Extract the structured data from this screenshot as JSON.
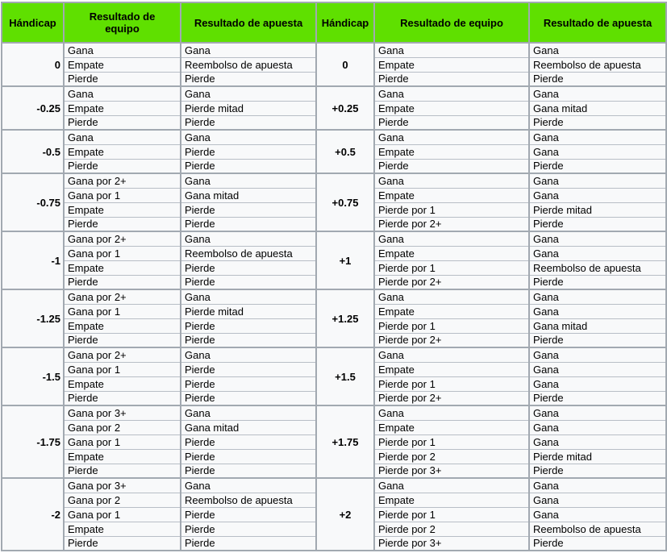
{
  "columns": [
    "Hándicap",
    "Resultado de equipo",
    "Resultado de apuesta",
    "Hándicap",
    "Resultado de equipo",
    "Resultado de apuesta"
  ],
  "colors": {
    "header_bg": "#5fe000",
    "border_major": "#a2a9b1",
    "border_minor": "#b8bec6",
    "cell_bg": "#f8f9fa",
    "text": "#000000"
  },
  "groups": [
    {
      "left": {
        "handicap": "0",
        "rows": [
          [
            "Gana",
            "Gana"
          ],
          [
            "Empate",
            "Reembolso de apuesta"
          ],
          [
            "Pierde",
            "Pierde"
          ]
        ]
      },
      "right": {
        "handicap": "0",
        "rows": [
          [
            "Gana",
            "Gana"
          ],
          [
            "Empate",
            "Reembolso de apuesta"
          ],
          [
            "Pierde",
            "Pierde"
          ]
        ]
      }
    },
    {
      "left": {
        "handicap": "-0.25",
        "rows": [
          [
            "Gana",
            "Gana"
          ],
          [
            "Empate",
            "Pierde mitad"
          ],
          [
            "Pierde",
            "Pierde"
          ]
        ]
      },
      "right": {
        "handicap": "+0.25",
        "rows": [
          [
            "Gana",
            "Gana"
          ],
          [
            "Empate",
            "Gana mitad"
          ],
          [
            "Pierde",
            "Pierde"
          ]
        ]
      }
    },
    {
      "left": {
        "handicap": "-0.5",
        "rows": [
          [
            "Gana",
            "Gana"
          ],
          [
            "Empate",
            "Pierde"
          ],
          [
            "Pierde",
            "Pierde"
          ]
        ]
      },
      "right": {
        "handicap": "+0.5",
        "rows": [
          [
            "Gana",
            "Gana"
          ],
          [
            "Empate",
            "Gana"
          ],
          [
            "Pierde",
            "Pierde"
          ]
        ]
      }
    },
    {
      "left": {
        "handicap": "-0.75",
        "rows": [
          [
            "Gana por 2+",
            "Gana"
          ],
          [
            "Gana por 1",
            "Gana mitad"
          ],
          [
            "Empate",
            "Pierde"
          ],
          [
            "Pierde",
            "Pierde"
          ]
        ]
      },
      "right": {
        "handicap": "+0.75",
        "rows": [
          [
            "Gana",
            "Gana"
          ],
          [
            "Empate",
            "Gana"
          ],
          [
            "Pierde por 1",
            "Pierde mitad"
          ],
          [
            "Pierde por 2+",
            "Pierde"
          ]
        ]
      }
    },
    {
      "left": {
        "handicap": "-1",
        "rows": [
          [
            "Gana por 2+",
            "Gana"
          ],
          [
            "Gana por 1",
            "Reembolso de apuesta"
          ],
          [
            "Empate",
            "Pierde"
          ],
          [
            "Pierde",
            "Pierde"
          ]
        ]
      },
      "right": {
        "handicap": "+1",
        "rows": [
          [
            "Gana",
            "Gana"
          ],
          [
            "Empate",
            "Gana"
          ],
          [
            "Pierde por 1",
            "Reembolso de apuesta"
          ],
          [
            "Pierde por 2+",
            "Pierde"
          ]
        ]
      }
    },
    {
      "left": {
        "handicap": "-1.25",
        "rows": [
          [
            "Gana por 2+",
            "Gana"
          ],
          [
            "Gana por 1",
            "Pierde mitad"
          ],
          [
            "Empate",
            "Pierde"
          ],
          [
            "Pierde",
            "Pierde"
          ]
        ]
      },
      "right": {
        "handicap": "+1.25",
        "rows": [
          [
            "Gana",
            "Gana"
          ],
          [
            "Empate",
            "Gana"
          ],
          [
            "Pierde por 1",
            "Gana mitad"
          ],
          [
            "Pierde por 2+",
            "Pierde"
          ]
        ]
      }
    },
    {
      "left": {
        "handicap": "-1.5",
        "rows": [
          [
            "Gana por 2+",
            "Gana"
          ],
          [
            "Gana por 1",
            "Pierde"
          ],
          [
            "Empate",
            "Pierde"
          ],
          [
            "Pierde",
            "Pierde"
          ]
        ]
      },
      "right": {
        "handicap": "+1.5",
        "rows": [
          [
            "Gana",
            "Gana"
          ],
          [
            "Empate",
            "Gana"
          ],
          [
            "Pierde por 1",
            "Gana"
          ],
          [
            "Pierde por 2+",
            "Pierde"
          ]
        ]
      }
    },
    {
      "left": {
        "handicap": "-1.75",
        "rows": [
          [
            "Gana por 3+",
            "Gana"
          ],
          [
            "Gana por 2",
            "Gana mitad"
          ],
          [
            "Gana por 1",
            "Pierde"
          ],
          [
            "Empate",
            "Pierde"
          ],
          [
            "Pierde",
            "Pierde"
          ]
        ]
      },
      "right": {
        "handicap": "+1.75",
        "rows": [
          [
            "Gana",
            "Gana"
          ],
          [
            "Empate",
            "Gana"
          ],
          [
            "Pierde por 1",
            "Gana"
          ],
          [
            "Pierde por 2",
            "Pierde mitad"
          ],
          [
            "Pierde por 3+",
            "Pierde"
          ]
        ]
      }
    },
    {
      "left": {
        "handicap": "-2",
        "rows": [
          [
            "Gana por 3+",
            "Gana"
          ],
          [
            "Gana por 2",
            "Reembolso de apuesta"
          ],
          [
            "Gana por 1",
            "Pierde"
          ],
          [
            "Empate",
            "Pierde"
          ],
          [
            "Pierde",
            "Pierde"
          ]
        ]
      },
      "right": {
        "handicap": "+2",
        "rows": [
          [
            "Gana",
            "Gana"
          ],
          [
            "Empate",
            "Gana"
          ],
          [
            "Pierde por 1",
            "Gana"
          ],
          [
            "Pierde por 2",
            "Reembolso de apuesta"
          ],
          [
            "Pierde por 3+",
            "Pierde"
          ]
        ]
      }
    }
  ]
}
